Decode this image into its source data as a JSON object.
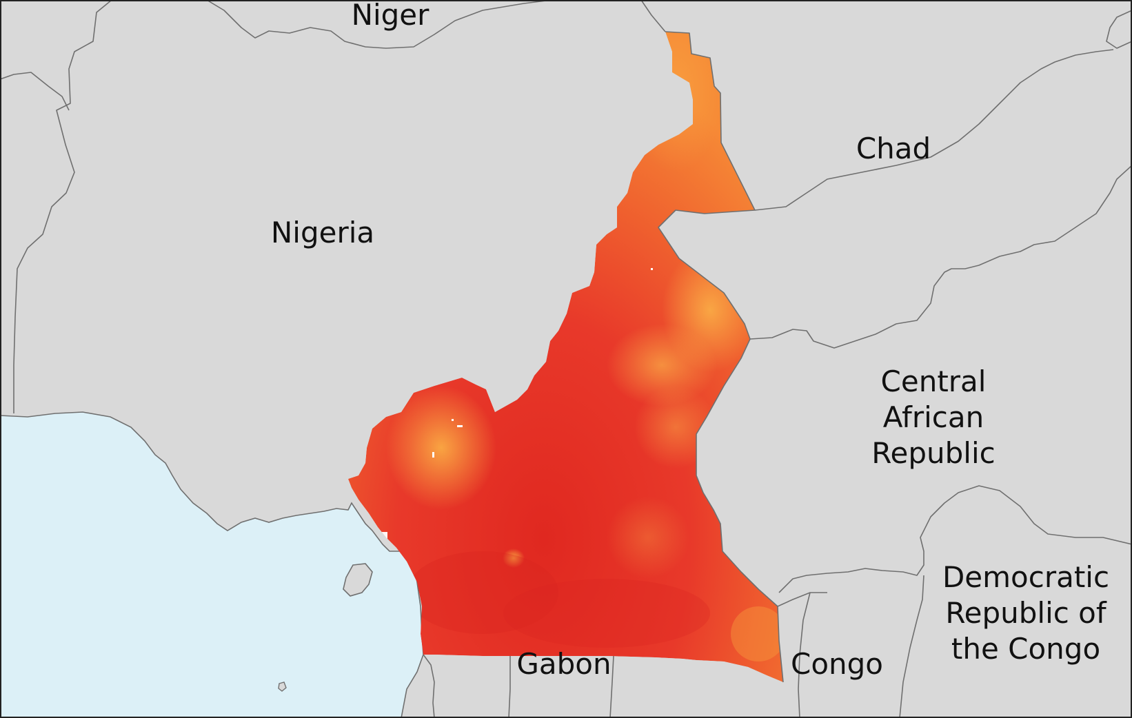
{
  "colors": {
    "land": "#d9d9d9",
    "water": "#dcf0f7",
    "border": "#6f6f6f",
    "label": "#111111",
    "cameroon_high": "#e52b21",
    "cameroon_mid": "#f0602c",
    "cameroon_low": "#fbb040"
  },
  "labels": {
    "niger": "Niger",
    "nigeria": "Nigeria",
    "chad": "Chad",
    "car_line1": "Central",
    "car_line2": "African",
    "car_line3": "Republic",
    "drc_line1": "Democratic",
    "drc_line2": "Republic of",
    "drc_line3": "the Congo",
    "gabon": "Gabon",
    "congo": "Congo"
  }
}
